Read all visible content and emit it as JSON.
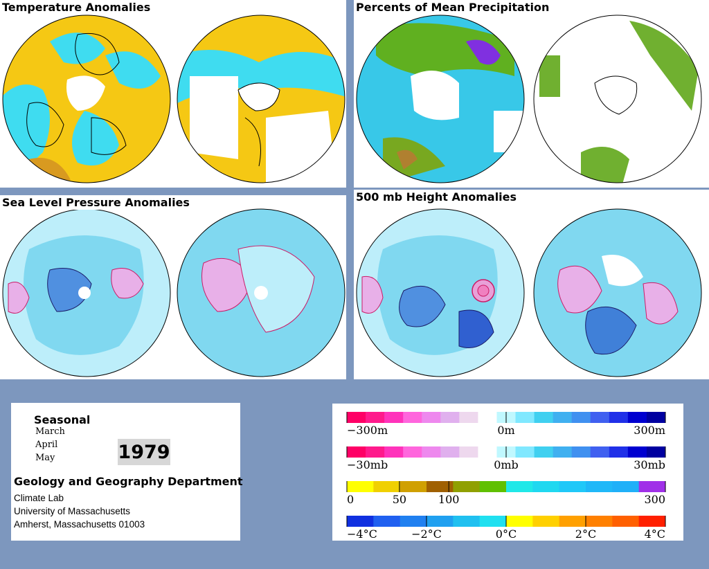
{
  "panels": [
    {
      "id": "temp",
      "title": "Temperature Anomalies"
    },
    {
      "id": "precip",
      "title": "Percents of Mean Precipitation"
    },
    {
      "id": "slp",
      "title": "Sea Level Pressure Anomalies"
    },
    {
      "id": "h500",
      "title": "500 mb Height Anomalies"
    }
  ],
  "info": {
    "season_label": "Seasonal",
    "months": [
      "March",
      "April",
      "May"
    ],
    "year": "1979",
    "department": "Geology and Geography Department",
    "address_lines": [
      "Climate Lab",
      "University of Massachusetts",
      "Amherst, Massachusetts 01003"
    ]
  },
  "legend": {
    "bars": [
      {
        "name": "height",
        "colors": [
          "#ff0066",
          "#ff1a8c",
          "#ff33bb",
          "#ff66dd",
          "#ee88ee",
          "#e0b0ee",
          "#eed8ee",
          "#ffffff",
          "#c0f8ff",
          "#80e8ff",
          "#40d0f0",
          "#40b0f0",
          "#4090f0",
          "#4060f0",
          "#2030e8",
          "#0000d0",
          "#0000a0"
        ],
        "labels": [
          "−300m",
          "0m",
          "300m"
        ]
      },
      {
        "name": "pressure",
        "colors": [
          "#ff0066",
          "#ff1a8c",
          "#ff33bb",
          "#ff66dd",
          "#ee88ee",
          "#e0b0ee",
          "#eed8ee",
          "#ffffff",
          "#c0f8ff",
          "#80e8ff",
          "#40d0f0",
          "#40b0f0",
          "#4090f0",
          "#4060f0",
          "#2030e8",
          "#0000d0",
          "#0000a0"
        ],
        "labels": [
          "−30mb",
          "0mb",
          "30mb"
        ]
      },
      {
        "name": "precip",
        "colors": [
          "#ffff00",
          "#f0d000",
          "#d0a000",
          "#a06000",
          "#90a000",
          "#60c000",
          "#20e8e8",
          "#20d8f0",
          "#20c8f8",
          "#20b8f8",
          "#20b0f8",
          "#a030e8"
        ],
        "labels": [
          "0",
          "50",
          "100",
          "300"
        ]
      },
      {
        "name": "temperature",
        "colors": [
          "#1030e0",
          "#2060f0",
          "#2080f0",
          "#20a0f0",
          "#20c0f0",
          "#20e0f0",
          "#ffff00",
          "#ffd000",
          "#ffa000",
          "#ff8000",
          "#ff6000",
          "#ff2000"
        ],
        "labels": [
          "−4°C",
          "−2°C",
          "0°C",
          "2°C",
          "4°C"
        ]
      }
    ]
  },
  "colors": {
    "background": "#7d97be",
    "warm": "#f5c814",
    "cool": "#3fdcf0",
    "pos_contour": "#cc1a66",
    "neg_contour": "#1a1a66"
  }
}
